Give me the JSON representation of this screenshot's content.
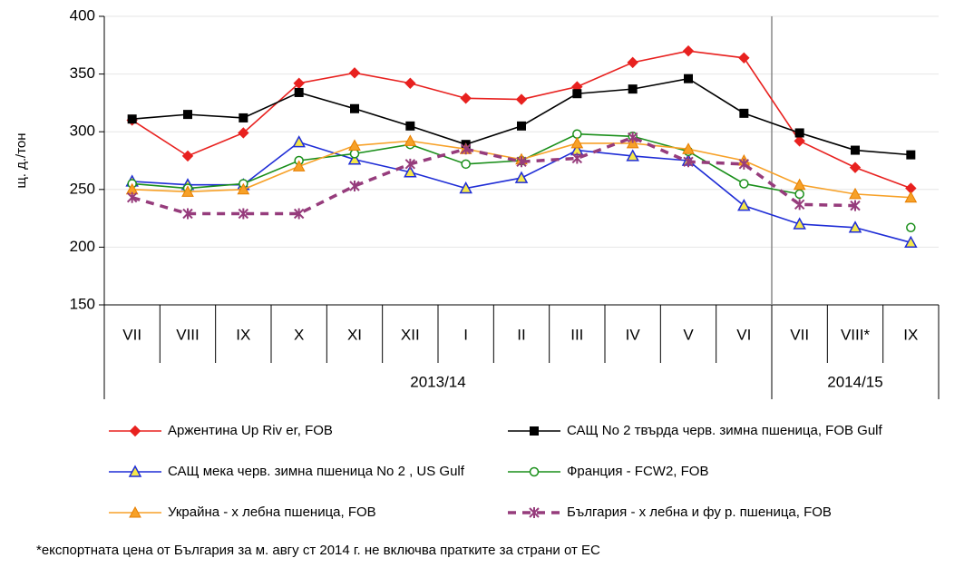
{
  "chart_data": {
    "type": "line",
    "ylabel": "щ. д./тон",
    "categories": [
      "VII",
      "VIII",
      "IX",
      "X",
      "XI",
      "XII",
      "I",
      "II",
      "III",
      "IV",
      "V",
      "VI",
      "VII",
      "VIII*",
      "IX"
    ],
    "category_group": [
      "2013/14",
      "2013/14",
      "2013/14",
      "2013/14",
      "2013/14",
      "2013/14",
      "2013/14",
      "2013/14",
      "2013/14",
      "2013/14",
      "2013/14",
      "2013/14",
      "2014/15",
      "2014/15",
      "2014/15"
    ],
    "ylim": [
      150,
      400
    ],
    "yticks": [
      150,
      200,
      250,
      300,
      350,
      400
    ],
    "grid": true,
    "series": [
      {
        "name": "Аржентина Up Riv er, FOB",
        "color": "#e8211f",
        "marker": "diamond",
        "dashed": false,
        "values": [
          310,
          279,
          299,
          342,
          351,
          342,
          329,
          328,
          339,
          360,
          370,
          364,
          292,
          269,
          251
        ]
      },
      {
        "name": "САЩ No 2 твърда черв. зимна пшеница, FOB Gulf",
        "color": "#000000",
        "marker": "square",
        "dashed": false,
        "values": [
          311,
          315,
          312,
          334,
          320,
          305,
          289,
          305,
          333,
          337,
          346,
          316,
          299,
          284,
          280
        ]
      },
      {
        "name": "САЩ мека черв. зимна пшеница No 2 , US Gulf",
        "color": "#1f2dd6",
        "marker": "triangle-open",
        "dashed": false,
        "values": [
          257,
          254,
          254,
          291,
          276,
          265,
          251,
          260,
          284,
          279,
          275,
          236,
          220,
          217,
          204
        ]
      },
      {
        "name": "Франция - FCW2, FOB",
        "color": "#1a8f1a",
        "marker": "circle-open",
        "dashed": false,
        "values": [
          255,
          251,
          255,
          275,
          281,
          289,
          272,
          275,
          298,
          296,
          283,
          255,
          246,
          null,
          217
        ]
      },
      {
        "name": "Украйна - х лебна пшеница, FOB",
        "color": "#f7a128",
        "marker": "triangle",
        "dashed": false,
        "values": [
          250,
          248,
          250,
          270,
          288,
          292,
          285,
          276,
          290,
          290,
          285,
          275,
          254,
          246,
          243
        ]
      },
      {
        "name": "България - х лебна и фу р. пшеница, FOB",
        "color": "#963c7c",
        "marker": "asterisk",
        "dashed": true,
        "values": [
          243,
          229,
          229,
          229,
          253,
          272,
          285,
          274,
          277,
          295,
          274,
          272,
          237,
          236,
          null
        ]
      }
    ],
    "footnote": "*експортната цена от България за м. авгу ст 2014 г. не включва пратките за страни от ЕС"
  }
}
